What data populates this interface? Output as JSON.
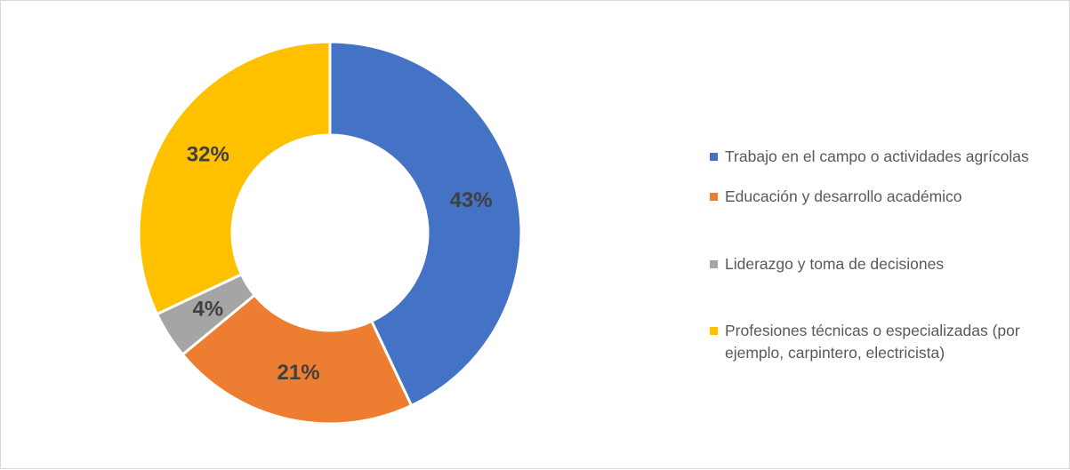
{
  "chart_data": {
    "type": "donut",
    "categories": [
      "Trabajo en el campo o actividades agrícolas",
      "Educación y desarrollo académico",
      "Liderazgo y toma de decisiones",
      "Profesiones técnicas o especializadas (por ejemplo, carpintero, electricista)"
    ],
    "values": [
      43,
      21,
      4,
      32
    ],
    "value_labels": [
      "43%",
      "21%",
      "4%",
      "32%"
    ],
    "colors": [
      "#4472c4",
      "#ed7d31",
      "#a5a5a5",
      "#ffc000"
    ],
    "legend": "right"
  }
}
